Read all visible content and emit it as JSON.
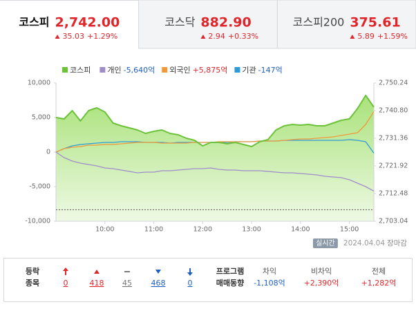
{
  "tabs": [
    {
      "name": "코스피",
      "value": "2,742.00",
      "change": "35.03",
      "rate": "+1.29%"
    },
    {
      "name": "코스닥",
      "value": "882.90",
      "change": "2.94",
      "rate": "+0.33%"
    },
    {
      "name": "코스피200",
      "value": "375.61",
      "change": "5.89",
      "rate": "+1.59%"
    }
  ],
  "active_tab": 0,
  "chart_data": {
    "type": "line",
    "x": [
      540,
      550,
      560,
      570,
      580,
      590,
      600,
      610,
      620,
      630,
      640,
      650,
      660,
      670,
      680,
      690,
      700,
      710,
      720,
      730,
      740,
      750,
      760,
      770,
      780,
      790,
      800,
      810,
      820,
      830,
      840,
      850,
      860,
      870,
      880,
      890,
      900,
      910,
      920,
      930
    ],
    "xlim": [
      540,
      930
    ],
    "xticks": [
      {
        "value": 600,
        "label": "10:00"
      },
      {
        "value": 660,
        "label": "11:00"
      },
      {
        "value": 720,
        "label": "12:00"
      },
      {
        "value": 780,
        "label": "13:00"
      },
      {
        "value": 840,
        "label": "14:00"
      },
      {
        "value": 900,
        "label": "15:00"
      }
    ],
    "ylim": [
      -10000,
      10000
    ],
    "yticks": [
      {
        "value": 10000,
        "label": "10,000"
      },
      {
        "value": 5000,
        "label": "5,000"
      },
      0,
      {
        "value": -5000,
        "label": "-5,000"
      },
      {
        "value": -10000,
        "label": "-10,000"
      }
    ],
    "y2lim": [
      2703.04,
      2750.24
    ],
    "y2ticks": [
      {
        "value": 2750.24,
        "label": "2,750.24"
      },
      {
        "value": 2740.8,
        "label": "2,740.80"
      },
      {
        "value": 2731.36,
        "label": "2,731.36"
      },
      {
        "value": 2721.92,
        "label": "2,721.92"
      },
      {
        "value": 2712.48,
        "label": "2,712.48"
      },
      {
        "value": 2703.04,
        "label": "2,703.04"
      }
    ],
    "reference_line": {
      "value": 2706.97,
      "axis": "y2",
      "color": "#555555"
    },
    "series": [
      {
        "name": "코스피",
        "color": "#6cc23a",
        "axis": "y2",
        "fill": true,
        "values": [
          2738.44,
          2737.97,
          2740.8,
          2737.26,
          2740.8,
          2741.74,
          2740.33,
          2736.55,
          2735.61,
          2734.9,
          2734.19,
          2733.01,
          2733.72,
          2734.19,
          2733.01,
          2732.54,
          2731.36,
          2730.65,
          2728.76,
          2729.94,
          2729.94,
          2729.47,
          2729.94,
          2729.24,
          2728.53,
          2730.18,
          2730.89,
          2734.19,
          2735.61,
          2736.08,
          2735.84,
          2736.08,
          2735.61,
          2735.61,
          2736.55,
          2737.5,
          2737.97,
          2741.51,
          2745.99,
          2742.0
        ]
      },
      {
        "name": "개인",
        "color": "#a08ccb",
        "summary": "-5,640억",
        "summary_color": "#1f5fbf",
        "values": [
          0,
          -800,
          -1300,
          -1600,
          -1800,
          -2000,
          -2300,
          -2400,
          -2600,
          -2800,
          -3000,
          -2900,
          -2900,
          -2700,
          -2700,
          -2600,
          -2500,
          -2400,
          -2400,
          -2300,
          -2500,
          -2600,
          -2600,
          -2700,
          -2700,
          -2700,
          -2800,
          -2900,
          -3000,
          -3000,
          -3100,
          -3200,
          -3300,
          -3500,
          -3600,
          -3700,
          -4000,
          -4500,
          -5000,
          -5640
        ]
      },
      {
        "name": "외국인",
        "color": "#f0993a",
        "summary": "+5,875억",
        "summary_color": "#e0262b",
        "values": [
          0,
          500,
          700,
          800,
          1000,
          1000,
          1100,
          1100,
          1200,
          1300,
          1400,
          1400,
          1400,
          1300,
          1300,
          1300,
          1300,
          1400,
          1400,
          1400,
          1500,
          1500,
          1500,
          1500,
          1500,
          1600,
          1600,
          1600,
          1700,
          1800,
          1900,
          1900,
          2000,
          2100,
          2200,
          2400,
          2600,
          2800,
          4000,
          5875
        ]
      },
      {
        "name": "기관",
        "color": "#2f9bd6",
        "summary": "-147억",
        "summary_color": "#1f5fbf",
        "values": [
          0,
          500,
          900,
          1100,
          1200,
          1300,
          1400,
          1400,
          1500,
          1500,
          1500,
          1400,
          1400,
          1400,
          1300,
          1400,
          1400,
          1400,
          1400,
          1400,
          1400,
          1400,
          1500,
          1500,
          1500,
          1600,
          1600,
          1600,
          1700,
          1700,
          1700,
          1700,
          1700,
          1700,
          1700,
          1700,
          1800,
          1700,
          1500,
          -147
        ]
      }
    ]
  },
  "status": {
    "badge": "실시간",
    "date": "2024.04.04",
    "state": "장마감"
  },
  "breadth": {
    "label": [
      "등락",
      "종목"
    ],
    "items": [
      {
        "icon": "upper-limit",
        "value": "0",
        "color": "#e0262b"
      },
      {
        "icon": "up",
        "value": "418",
        "color": "#e0262b"
      },
      {
        "icon": "flat",
        "value": "45",
        "color": "#777777"
      },
      {
        "icon": "down",
        "value": "468",
        "color": "#1f5fbf"
      },
      {
        "icon": "lower-limit",
        "value": "0",
        "color": "#1f5fbf"
      }
    ]
  },
  "program": {
    "label": [
      "프로그램",
      "매매동향"
    ],
    "columns": [
      {
        "name": "차익",
        "value": "-1,108억",
        "color": "#1f5fbf"
      },
      {
        "name": "비차익",
        "value": "+2,390억",
        "color": "#e0262b"
      },
      {
        "name": "전체",
        "value": "+1,282억",
        "color": "#e0262b"
      }
    ]
  }
}
